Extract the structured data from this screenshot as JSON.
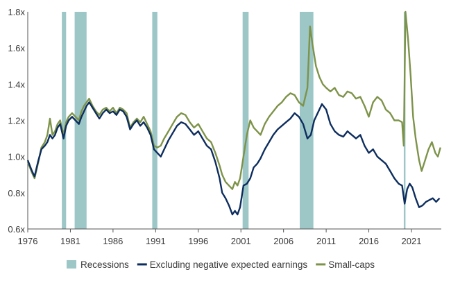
{
  "chart_data": {
    "type": "line",
    "title": "",
    "xlabel": "",
    "ylabel": "",
    "xlim": [
      1976,
      2024.5
    ],
    "ylim": [
      0.6,
      1.8
    ],
    "grid": false,
    "legend_position": "bottom",
    "x_ticks": [
      1976,
      1981,
      1986,
      1991,
      1996,
      2001,
      2006,
      2011,
      2016,
      2021
    ],
    "x_tick_labels": [
      "1976",
      "1981",
      "1986",
      "1991",
      "1996",
      "2001",
      "2006",
      "2011",
      "2016",
      "2021"
    ],
    "y_ticks": [
      0.6,
      0.8,
      1.0,
      1.2,
      1.4,
      1.6,
      1.8
    ],
    "y_tick_labels": [
      "0.6x",
      "0.8x",
      "1.0x",
      "1.2x",
      "1.4x",
      "1.6x",
      "1.8x"
    ],
    "recessions": {
      "name": "Recessions",
      "color": "#9dc6c6",
      "periods": [
        [
          1980.0,
          1980.5
        ],
        [
          1981.5,
          1982.9
        ],
        [
          1990.6,
          1991.2
        ],
        [
          2001.2,
          2001.9
        ],
        [
          2007.9,
          2009.5
        ],
        [
          2020.1,
          2020.3
        ]
      ]
    },
    "series": [
      {
        "name": "Excluding negative expected earnings",
        "color": "#0d2d5e",
        "points": [
          [
            1976.0,
            0.98
          ],
          [
            1976.5,
            0.92
          ],
          [
            1976.8,
            0.89
          ],
          [
            1977.2,
            0.97
          ],
          [
            1977.6,
            1.04
          ],
          [
            1978.0,
            1.06
          ],
          [
            1978.3,
            1.08
          ],
          [
            1978.6,
            1.12
          ],
          [
            1978.9,
            1.1
          ],
          [
            1979.2,
            1.12
          ],
          [
            1979.5,
            1.16
          ],
          [
            1979.8,
            1.18
          ],
          [
            1980.2,
            1.1
          ],
          [
            1980.5,
            1.17
          ],
          [
            1980.8,
            1.2
          ],
          [
            1981.2,
            1.22
          ],
          [
            1981.6,
            1.2
          ],
          [
            1982.0,
            1.18
          ],
          [
            1982.3,
            1.22
          ],
          [
            1982.6,
            1.25
          ],
          [
            1982.9,
            1.28
          ],
          [
            1983.2,
            1.3
          ],
          [
            1983.6,
            1.27
          ],
          [
            1984.0,
            1.24
          ],
          [
            1984.4,
            1.21
          ],
          [
            1984.8,
            1.24
          ],
          [
            1985.2,
            1.26
          ],
          [
            1985.6,
            1.24
          ],
          [
            1986.0,
            1.25
          ],
          [
            1986.4,
            1.23
          ],
          [
            1986.8,
            1.26
          ],
          [
            1987.2,
            1.25
          ],
          [
            1987.6,
            1.22
          ],
          [
            1988.0,
            1.15
          ],
          [
            1988.4,
            1.18
          ],
          [
            1988.8,
            1.2
          ],
          [
            1989.2,
            1.17
          ],
          [
            1989.6,
            1.19
          ],
          [
            1990.0,
            1.16
          ],
          [
            1990.4,
            1.12
          ],
          [
            1990.8,
            1.04
          ],
          [
            1991.2,
            1.02
          ],
          [
            1991.6,
            1.0
          ],
          [
            1992.0,
            1.04
          ],
          [
            1992.5,
            1.09
          ],
          [
            1993.0,
            1.13
          ],
          [
            1993.5,
            1.17
          ],
          [
            1994.0,
            1.19
          ],
          [
            1994.5,
            1.18
          ],
          [
            1995.0,
            1.15
          ],
          [
            1995.5,
            1.12
          ],
          [
            1996.0,
            1.14
          ],
          [
            1996.5,
            1.1
          ],
          [
            1997.0,
            1.06
          ],
          [
            1997.5,
            1.04
          ],
          [
            1998.0,
            0.97
          ],
          [
            1998.5,
            0.88
          ],
          [
            1998.8,
            0.8
          ],
          [
            1999.2,
            0.77
          ],
          [
            1999.6,
            0.73
          ],
          [
            2000.0,
            0.68
          ],
          [
            2000.3,
            0.7
          ],
          [
            2000.6,
            0.68
          ],
          [
            2000.9,
            0.72
          ],
          [
            2001.3,
            0.84
          ],
          [
            2001.7,
            0.85
          ],
          [
            2002.1,
            0.88
          ],
          [
            2002.5,
            0.94
          ],
          [
            2002.9,
            0.96
          ],
          [
            2003.3,
            0.99
          ],
          [
            2003.8,
            1.04
          ],
          [
            2004.3,
            1.08
          ],
          [
            2004.8,
            1.12
          ],
          [
            2005.3,
            1.15
          ],
          [
            2005.8,
            1.17
          ],
          [
            2006.3,
            1.19
          ],
          [
            2006.8,
            1.21
          ],
          [
            2007.3,
            1.24
          ],
          [
            2007.8,
            1.22
          ],
          [
            2008.3,
            1.18
          ],
          [
            2008.8,
            1.1
          ],
          [
            2009.2,
            1.12
          ],
          [
            2009.6,
            1.2
          ],
          [
            2010.0,
            1.24
          ],
          [
            2010.5,
            1.29
          ],
          [
            2011.0,
            1.26
          ],
          [
            2011.5,
            1.18
          ],
          [
            2012.0,
            1.14
          ],
          [
            2012.5,
            1.12
          ],
          [
            2013.0,
            1.11
          ],
          [
            2013.5,
            1.14
          ],
          [
            2014.0,
            1.12
          ],
          [
            2014.5,
            1.1
          ],
          [
            2015.0,
            1.12
          ],
          [
            2015.5,
            1.06
          ],
          [
            2016.0,
            1.02
          ],
          [
            2016.5,
            1.04
          ],
          [
            2017.0,
            1.0
          ],
          [
            2017.5,
            0.98
          ],
          [
            2018.0,
            0.96
          ],
          [
            2018.5,
            0.92
          ],
          [
            2019.0,
            0.88
          ],
          [
            2019.5,
            0.85
          ],
          [
            2019.9,
            0.84
          ],
          [
            2020.2,
            0.74
          ],
          [
            2020.5,
            0.82
          ],
          [
            2020.8,
            0.85
          ],
          [
            2021.1,
            0.83
          ],
          [
            2021.5,
            0.77
          ],
          [
            2021.9,
            0.72
          ],
          [
            2022.3,
            0.73
          ],
          [
            2022.7,
            0.75
          ],
          [
            2023.1,
            0.76
          ],
          [
            2023.5,
            0.77
          ],
          [
            2023.9,
            0.75
          ],
          [
            2024.3,
            0.77
          ]
        ]
      },
      {
        "name": "Small-caps",
        "color": "#7d9349",
        "points": [
          [
            1976.0,
            0.97
          ],
          [
            1976.5,
            0.91
          ],
          [
            1976.8,
            0.88
          ],
          [
            1977.2,
            0.96
          ],
          [
            1977.6,
            1.05
          ],
          [
            1978.0,
            1.08
          ],
          [
            1978.3,
            1.12
          ],
          [
            1978.6,
            1.21
          ],
          [
            1978.9,
            1.12
          ],
          [
            1979.2,
            1.14
          ],
          [
            1979.5,
            1.18
          ],
          [
            1979.8,
            1.2
          ],
          [
            1980.2,
            1.12
          ],
          [
            1980.5,
            1.19
          ],
          [
            1980.8,
            1.22
          ],
          [
            1981.2,
            1.24
          ],
          [
            1981.6,
            1.22
          ],
          [
            1982.0,
            1.2
          ],
          [
            1982.3,
            1.25
          ],
          [
            1982.6,
            1.28
          ],
          [
            1982.9,
            1.3
          ],
          [
            1983.2,
            1.32
          ],
          [
            1983.6,
            1.28
          ],
          [
            1984.0,
            1.25
          ],
          [
            1984.4,
            1.23
          ],
          [
            1984.8,
            1.26
          ],
          [
            1985.2,
            1.27
          ],
          [
            1985.6,
            1.25
          ],
          [
            1986.0,
            1.27
          ],
          [
            1986.4,
            1.24
          ],
          [
            1986.8,
            1.27
          ],
          [
            1987.2,
            1.26
          ],
          [
            1987.6,
            1.24
          ],
          [
            1988.0,
            1.16
          ],
          [
            1988.4,
            1.19
          ],
          [
            1988.8,
            1.21
          ],
          [
            1989.2,
            1.19
          ],
          [
            1989.6,
            1.22
          ],
          [
            1990.0,
            1.18
          ],
          [
            1990.4,
            1.14
          ],
          [
            1990.8,
            1.06
          ],
          [
            1991.2,
            1.05
          ],
          [
            1991.6,
            1.06
          ],
          [
            1992.0,
            1.1
          ],
          [
            1992.5,
            1.14
          ],
          [
            1993.0,
            1.18
          ],
          [
            1993.5,
            1.22
          ],
          [
            1994.0,
            1.24
          ],
          [
            1994.5,
            1.23
          ],
          [
            1995.0,
            1.19
          ],
          [
            1995.5,
            1.16
          ],
          [
            1996.0,
            1.18
          ],
          [
            1996.5,
            1.14
          ],
          [
            1997.0,
            1.1
          ],
          [
            1997.5,
            1.08
          ],
          [
            1998.0,
            1.02
          ],
          [
            1998.5,
            0.95
          ],
          [
            1998.8,
            0.9
          ],
          [
            1999.2,
            0.86
          ],
          [
            1999.6,
            0.84
          ],
          [
            2000.0,
            0.82
          ],
          [
            2000.3,
            0.86
          ],
          [
            2000.6,
            0.84
          ],
          [
            2000.9,
            0.88
          ],
          [
            2001.3,
            1.0
          ],
          [
            2001.7,
            1.12
          ],
          [
            2002.1,
            1.2
          ],
          [
            2002.5,
            1.16
          ],
          [
            2002.9,
            1.14
          ],
          [
            2003.3,
            1.12
          ],
          [
            2003.8,
            1.18
          ],
          [
            2004.3,
            1.22
          ],
          [
            2004.8,
            1.25
          ],
          [
            2005.3,
            1.28
          ],
          [
            2005.8,
            1.3
          ],
          [
            2006.3,
            1.33
          ],
          [
            2006.8,
            1.35
          ],
          [
            2007.3,
            1.34
          ],
          [
            2007.8,
            1.3
          ],
          [
            2008.3,
            1.28
          ],
          [
            2008.8,
            1.38
          ],
          [
            2009.1,
            1.72
          ],
          [
            2009.4,
            1.62
          ],
          [
            2009.8,
            1.5
          ],
          [
            2010.2,
            1.44
          ],
          [
            2010.6,
            1.4
          ],
          [
            2011.0,
            1.38
          ],
          [
            2011.5,
            1.36
          ],
          [
            2012.0,
            1.38
          ],
          [
            2012.5,
            1.34
          ],
          [
            2013.0,
            1.33
          ],
          [
            2013.5,
            1.36
          ],
          [
            2014.0,
            1.35
          ],
          [
            2014.5,
            1.32
          ],
          [
            2015.0,
            1.33
          ],
          [
            2015.5,
            1.28
          ],
          [
            2016.0,
            1.22
          ],
          [
            2016.5,
            1.3
          ],
          [
            2017.0,
            1.33
          ],
          [
            2017.5,
            1.31
          ],
          [
            2018.0,
            1.26
          ],
          [
            2018.5,
            1.24
          ],
          [
            2019.0,
            1.2
          ],
          [
            2019.5,
            1.2
          ],
          [
            2019.9,
            1.19
          ],
          [
            2020.1,
            1.06
          ],
          [
            2020.3,
            1.8
          ],
          [
            2020.6,
            1.65
          ],
          [
            2020.9,
            1.45
          ],
          [
            2021.2,
            1.22
          ],
          [
            2021.5,
            1.1
          ],
          [
            2021.9,
            0.98
          ],
          [
            2022.2,
            0.92
          ],
          [
            2022.6,
            0.98
          ],
          [
            2023.0,
            1.04
          ],
          [
            2023.4,
            1.08
          ],
          [
            2023.8,
            1.02
          ],
          [
            2024.1,
            1.0
          ],
          [
            2024.4,
            1.05
          ]
        ]
      }
    ]
  }
}
